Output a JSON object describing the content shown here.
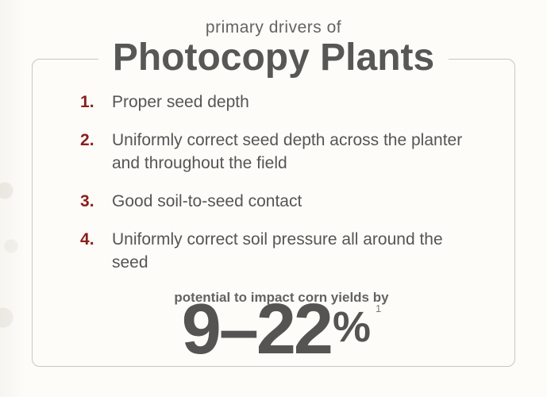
{
  "header": {
    "subtitle": "primary drivers of",
    "title": "Photocopy Plants"
  },
  "points": [
    "Proper seed depth",
    "Uniformly correct seed depth across the planter and throughout the field",
    "Good soil-to-seed contact",
    "Uniformly correct soil pressure all around the seed"
  ],
  "impact": {
    "label": "potential to impact corn yields by",
    "value": "9–22",
    "unit": "%",
    "footnote": "1"
  },
  "style": {
    "bg_color": "#fdfcf9",
    "border_color": "#c7c6c3",
    "title_color": "#575755",
    "text_color": "#565553",
    "subtitle_color": "#636362",
    "number_color": "#8a1e1a",
    "big_color": "#555452",
    "title_fontsize": 48,
    "subtitle_fontsize": 21,
    "list_fontsize": 21,
    "impact_label_fontsize": 17,
    "big_num_fontsize": 90,
    "pct_fontsize": 54
  }
}
